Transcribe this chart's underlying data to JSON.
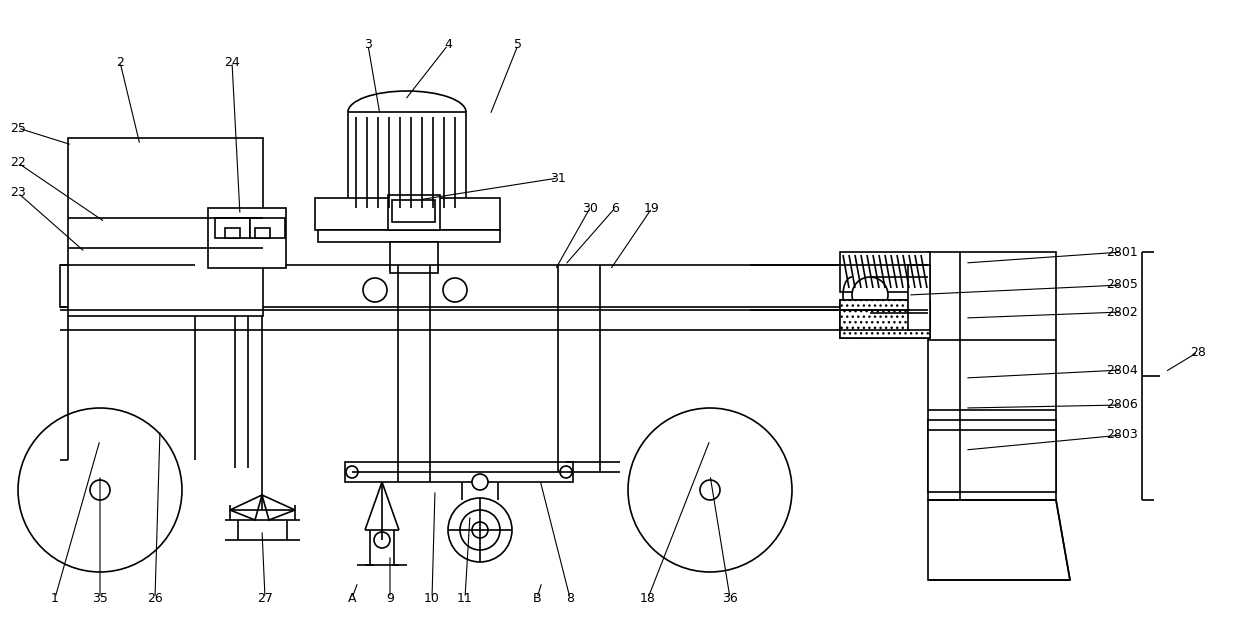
{
  "bg_color": "#ffffff",
  "line_color": "#000000",
  "label_fontsize": 9,
  "lw": 1.2,
  "labels_data": [
    [
      "1",
      100,
      440,
      55,
      598
    ],
    [
      "2",
      140,
      145,
      120,
      62
    ],
    [
      "3",
      380,
      115,
      368,
      45
    ],
    [
      "4",
      405,
      100,
      448,
      45
    ],
    [
      "5",
      490,
      115,
      518,
      45
    ],
    [
      "6",
      565,
      265,
      615,
      208
    ],
    [
      "8",
      540,
      480,
      570,
      598
    ],
    [
      "9",
      390,
      555,
      390,
      598
    ],
    [
      "10",
      435,
      490,
      432,
      598
    ],
    [
      "11",
      470,
      515,
      465,
      598
    ],
    [
      "18",
      710,
      440,
      648,
      598
    ],
    [
      "19",
      610,
      270,
      652,
      208
    ],
    [
      "22",
      105,
      222,
      18,
      163
    ],
    [
      "23",
      85,
      252,
      18,
      193
    ],
    [
      "24",
      240,
      215,
      232,
      62
    ],
    [
      "25",
      72,
      145,
      18,
      128
    ],
    [
      "26",
      160,
      430,
      155,
      598
    ],
    [
      "27",
      262,
      530,
      265,
      598
    ],
    [
      "28",
      1165,
      372,
      1198,
      352
    ],
    [
      "30",
      555,
      270,
      590,
      208
    ],
    [
      "31",
      418,
      200,
      558,
      178
    ],
    [
      "35",
      100,
      475,
      100,
      598
    ],
    [
      "36",
      710,
      475,
      730,
      598
    ],
    [
      "2801",
      965,
      263,
      1122,
      252
    ],
    [
      "2802",
      965,
      318,
      1122,
      312
    ],
    [
      "2803",
      965,
      450,
      1122,
      435
    ],
    [
      "2804",
      965,
      378,
      1122,
      370
    ],
    [
      "2805",
      908,
      295,
      1122,
      285
    ],
    [
      "2806",
      965,
      408,
      1122,
      405
    ],
    [
      "A",
      358,
      582,
      352,
      598
    ],
    [
      "B",
      542,
      582,
      537,
      598
    ]
  ]
}
